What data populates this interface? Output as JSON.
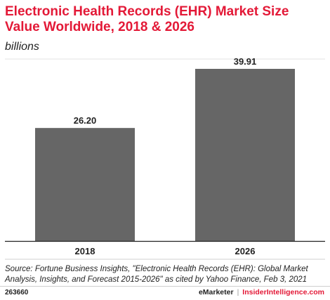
{
  "header": {
    "title": "Electronic Health Records (EHR) Market Size Value Worldwide, 2018 & 2026",
    "subtitle": "billions"
  },
  "chart_data": {
    "type": "bar",
    "categories": [
      "2018",
      "2026"
    ],
    "values": [
      26.2,
      39.91
    ],
    "value_labels": [
      "26.20",
      "39.91"
    ],
    "title": "Electronic Health Records (EHR) Market Size Value Worldwide, 2018 & 2026",
    "subtitle": "billions",
    "xlabel": "",
    "ylabel": "",
    "grid": false,
    "bar_color": "#666666"
  },
  "source": "Source: Fortune Business Insights, \"Electronic Health Records (EHR): Global Market Analysis, Insights, and Forecast 2015-2026\" as cited by Yahoo Finance, Feb 3, 2021",
  "footer": {
    "id": "263660",
    "brand_left": "eMarketer",
    "separator": "|",
    "brand_right": "InsiderIntelligence.com"
  },
  "colors": {
    "accent": "#e31937",
    "bar": "#666666"
  }
}
